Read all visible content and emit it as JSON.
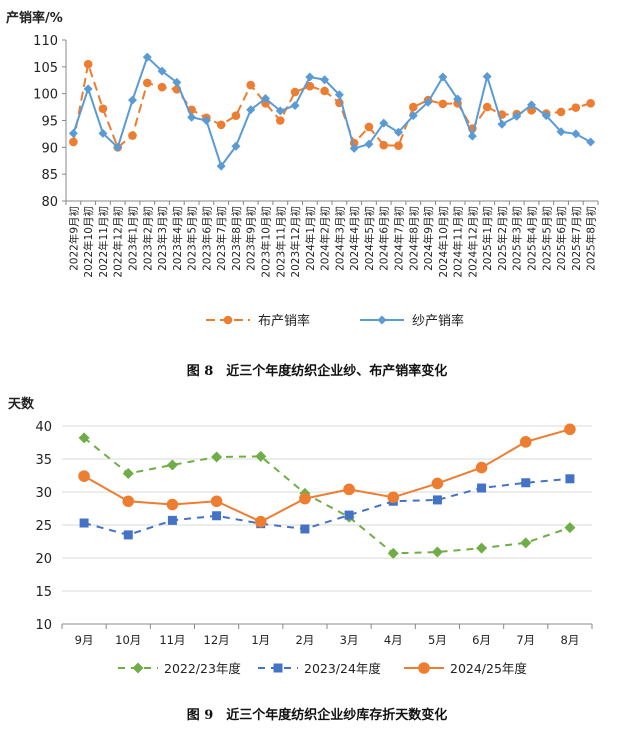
{
  "chart_data": [
    {
      "type": "line",
      "ylabel": "产销率/%",
      "ylim": [
        80,
        110
      ],
      "yticks": [
        80,
        85,
        90,
        95,
        100,
        105,
        110
      ],
      "grid": false,
      "legend_position": "bottom",
      "x": [
        "2022年9月初",
        "2022年10月初",
        "2022年11月初",
        "2022年12月初",
        "2023年1月初",
        "2023年2月初",
        "2023年3月初",
        "2023年4月初",
        "2023年5月初",
        "2023年6月初",
        "2023年7月初",
        "2023年8月初",
        "2023年9月初",
        "2023年10月初",
        "2023年11月初",
        "2023年12月初",
        "2024年1月初",
        "2024年2月初",
        "2024年3月初",
        "2024年4月初",
        "2024年5月初",
        "2024年6月初",
        "2024年7月初",
        "2024年8月初",
        "2024年9月初",
        "2024年10月初",
        "2024年11月初",
        "2024年12月初",
        "2025年1月初",
        "2025年2月初",
        "2025年3月初",
        "2025年4月初",
        "2025年5月初",
        "2025年6月初",
        "2025年7月初",
        "2025年8月初"
      ],
      "series": [
        {
          "name": "布产销率",
          "color": "#ED7D31",
          "values": [
            91.0,
            105.5,
            97.2,
            90.0,
            92.2,
            102.0,
            101.2,
            100.8,
            97.0,
            95.5,
            94.2,
            95.9,
            101.6,
            98.2,
            95.0,
            100.3,
            101.4,
            100.5,
            98.3,
            90.8,
            93.8,
            90.4,
            90.3,
            97.5,
            98.8,
            98.1,
            98.2,
            93.5,
            97.5,
            96.1,
            96.2,
            96.9,
            96.3,
            96.6,
            97.4,
            98.2
          ]
        },
        {
          "name": "纱产销率",
          "color": "#5B9BD5",
          "values": [
            92.6,
            100.9,
            92.6,
            90.0,
            98.8,
            106.8,
            104.2,
            102.1,
            95.6,
            95.0,
            86.5,
            90.2,
            97.0,
            99.1,
            96.8,
            97.8,
            103.1,
            102.6,
            99.8,
            89.8,
            90.6,
            94.5,
            92.8,
            95.9,
            98.4,
            103.1,
            99.0,
            92.1,
            103.2,
            94.3,
            95.8,
            97.9,
            95.9,
            92.9,
            92.5,
            91.0
          ]
        }
      ],
      "caption": "图 8　近三个年度纺织企业纱、布产销率变化"
    },
    {
      "type": "line",
      "ylabel": "天数",
      "ylim": [
        10,
        40
      ],
      "yticks": [
        10,
        15,
        20,
        25,
        30,
        35,
        40
      ],
      "grid": true,
      "legend_position": "bottom",
      "categories": [
        "9月",
        "10月",
        "11月",
        "12月",
        "1月",
        "2月",
        "3月",
        "4月",
        "5月",
        "6月",
        "7月",
        "8月"
      ],
      "series": [
        {
          "name": "2022/23年度",
          "color": "#70AD47",
          "marker": "diamond",
          "values": [
            38.2,
            32.8,
            34.1,
            35.3,
            35.4,
            29.8,
            26.2,
            20.7,
            20.9,
            21.5,
            22.3,
            24.6
          ]
        },
        {
          "name": "2023/24年度",
          "color": "#4472C4",
          "marker": "square",
          "values": [
            25.3,
            23.5,
            25.7,
            26.4,
            25.2,
            24.4,
            26.5,
            28.6,
            28.8,
            30.6,
            31.4,
            32.0
          ]
        },
        {
          "name": "2024/25年度",
          "color": "#ED7D31",
          "marker": "circle",
          "values": [
            32.4,
            28.6,
            28.1,
            28.6,
            25.5,
            29.0,
            30.4,
            29.2,
            31.3,
            33.7,
            37.6,
            39.5
          ]
        }
      ],
      "caption": "图 9　近三个年度纺织企业纱库存折天数变化"
    }
  ]
}
